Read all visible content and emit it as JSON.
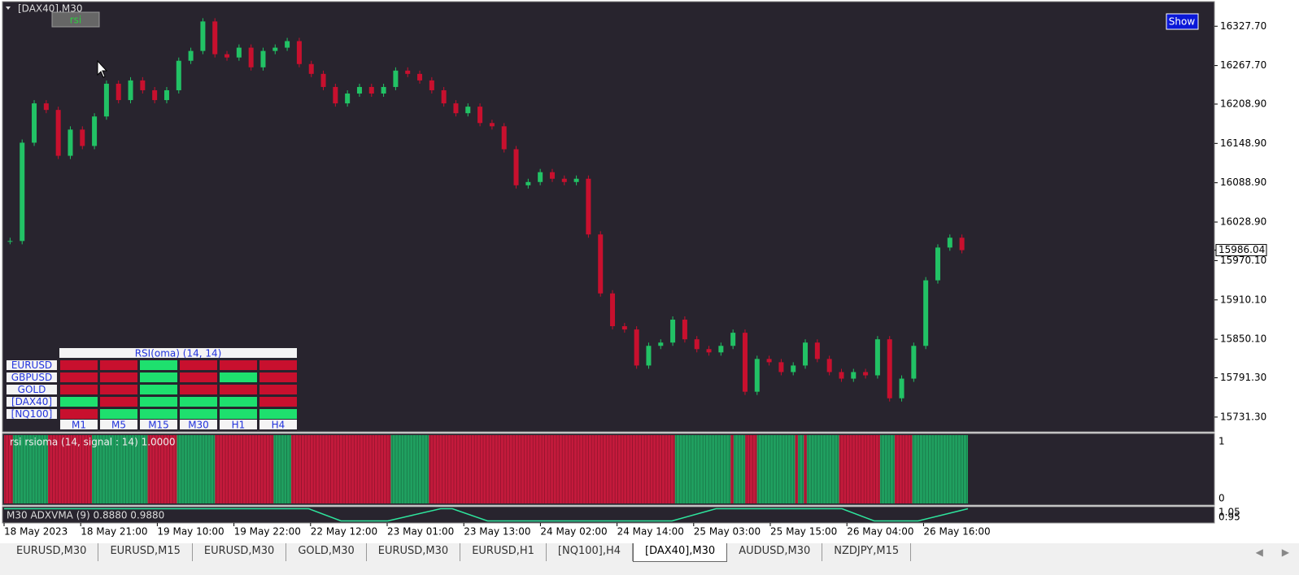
{
  "chart_data": {
    "type": "candlestick",
    "title": "[DAX40],M30",
    "button": "rsi",
    "show_button": "Show",
    "up_color": "#22c265",
    "down_color": "#c8102e",
    "values": [
      16000,
      16150,
      16210,
      16200,
      16130,
      16170,
      16145,
      16190,
      16240,
      16215,
      16245,
      16230,
      16215,
      16230,
      16275,
      16290,
      16335,
      16285,
      16280,
      16295,
      16265,
      16290,
      16295,
      16305,
      16270,
      16255,
      16235,
      16210,
      16225,
      16235,
      16225,
      16235,
      16260,
      16255,
      16245,
      16230,
      16210,
      16195,
      16205,
      16180,
      16175,
      16140,
      16085,
      16090,
      16105,
      16095,
      16090,
      16095,
      16010,
      15920,
      15870,
      15865,
      15810,
      15840,
      15845,
      15880,
      15850,
      15835,
      15830,
      15840,
      15860,
      15770,
      15820,
      15815,
      15800,
      15810,
      15845,
      15820,
      15800,
      15790,
      15800,
      15795,
      15850,
      15760,
      15790,
      15840,
      15940,
      15990,
      16005,
      15986.04
    ],
    "current_price": {
      "value": 15986.04,
      "label": "15986.04"
    },
    "ylim": [
      15710,
      16364
    ],
    "yticks": [
      {
        "value": 16327.7,
        "label": "16327.70"
      },
      {
        "value": 16267.7,
        "label": "16267.70"
      },
      {
        "value": 16208.9,
        "label": "16208.90"
      },
      {
        "value": 16148.9,
        "label": "16148.90"
      },
      {
        "value": 16088.9,
        "label": "16088.90"
      },
      {
        "value": 16028.9,
        "label": "16028.90"
      },
      {
        "value": 15970.1,
        "label": "15970.10"
      },
      {
        "value": 15910.1,
        "label": "15910.10"
      },
      {
        "value": 15850.1,
        "label": "15850.10"
      },
      {
        "value": 15791.3,
        "label": "15791.30"
      },
      {
        "value": 15731.3,
        "label": "15731.30"
      }
    ],
    "time_labels": [
      "18 May 2023",
      "18 May 21:00",
      "19 May 10:00",
      "19 May 22:00",
      "22 May 12:00",
      "23 May 01:00",
      "23 May 13:00",
      "24 May 02:00",
      "24 May 14:00",
      "25 May 03:00",
      "25 May 15:00",
      "26 May 04:00",
      "26 May 16:00"
    ],
    "rsi_panel": {
      "label": "rsi rsioma (14, signal : 14) 1.0000",
      "up_color": "#20a060",
      "down_color": "#c41a3c",
      "yticks": [
        1,
        0
      ],
      "ylim": [
        0,
        1
      ],
      "runs": [
        {
          "value": 0,
          "bars": 3
        },
        {
          "value": 1,
          "bars": 12
        },
        {
          "value": 0,
          "bars": 15
        },
        {
          "value": 1,
          "bars": 19
        },
        {
          "value": 0,
          "bars": 10
        },
        {
          "value": 1,
          "bars": 13
        },
        {
          "value": 0,
          "bars": 20
        },
        {
          "value": 1,
          "bars": 6
        },
        {
          "value": 0,
          "bars": 34
        },
        {
          "value": 1,
          "bars": 13
        },
        {
          "value": 0,
          "bars": 84
        },
        {
          "value": 1,
          "bars": 19
        },
        {
          "value": 0,
          "bars": 1
        },
        {
          "value": 1,
          "bars": 4
        },
        {
          "value": 0,
          "bars": 4
        },
        {
          "value": 1,
          "bars": 13
        },
        {
          "value": 0,
          "bars": 1
        },
        {
          "value": 1,
          "bars": 2
        },
        {
          "value": 0,
          "bars": 1
        },
        {
          "value": 1,
          "bars": 11
        },
        {
          "value": 0,
          "bars": 14
        },
        {
          "value": 1,
          "bars": 5
        },
        {
          "value": 0,
          "bars": 6
        },
        {
          "value": 1,
          "bars": 19
        }
      ]
    },
    "adx_panel": {
      "label": "M30 ADXVMA (9) 0.8880 0.9880",
      "color": "#2ee59d",
      "ylim": [
        0.94,
        1.06
      ],
      "yticks": [
        1.05,
        0.95
      ],
      "x": [
        0,
        104,
        115,
        131,
        149,
        153,
        165,
        228,
        243,
        286,
        297,
        312,
        329
      ],
      "values": [
        1.05,
        1.05,
        0.95,
        0.95,
        1.05,
        1.05,
        0.95,
        0.95,
        1.05,
        1.05,
        0.95,
        0.95,
        1.05
      ]
    },
    "table": {
      "title": "RSI(oma) (14, 14)",
      "rows": [
        "EURUSD",
        "GBPUSD",
        "GOLD",
        "[DAX40]",
        "[NQ100]"
      ],
      "columns": [
        "M1",
        "M5",
        "M15",
        "M30",
        "H1",
        "H4"
      ],
      "cells": [
        [
          0,
          0,
          1,
          0,
          0,
          0
        ],
        [
          0,
          0,
          1,
          0,
          1,
          0
        ],
        [
          0,
          0,
          1,
          0,
          0,
          0
        ],
        [
          1,
          0,
          1,
          1,
          1,
          0
        ],
        [
          0,
          1,
          1,
          1,
          1,
          1
        ]
      ],
      "up_color": "#1ee06e",
      "down_color": "#c8102e"
    },
    "tabs": [
      "EURUSD,M30",
      "EURUSD,M15",
      "EURUSD,M30",
      "GOLD,M30",
      "EURUSD,M30",
      "EURUSD,H1",
      "[NQ100],H4",
      "[DAX40],M30",
      "AUDUSD,M30",
      "NZDJPY,M15"
    ],
    "active_tab": 7
  }
}
